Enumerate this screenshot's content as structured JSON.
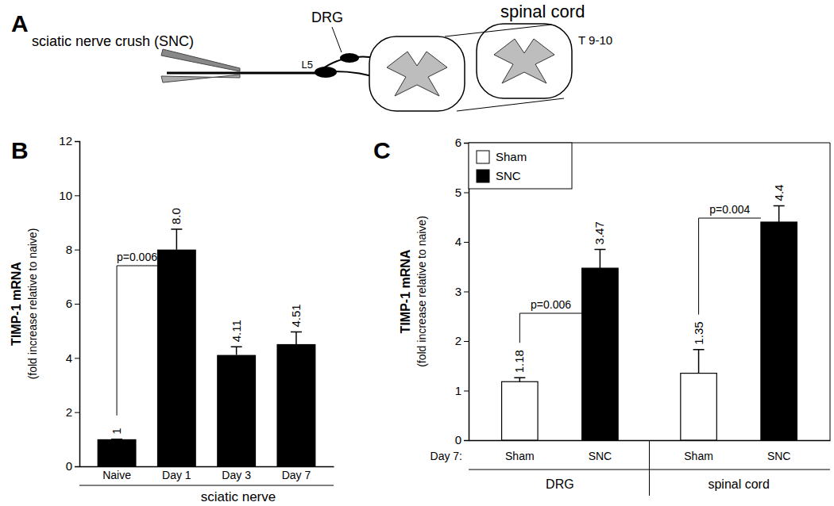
{
  "diagram": {
    "panel": "A",
    "tool": "sciatic nerve crush (SNC)",
    "ganglion": "DRG",
    "root": "L5",
    "cord": "spinal cord",
    "segment": "T 9-10"
  },
  "chart_data": [
    {
      "type": "bar",
      "panel": "B",
      "y_label": "TIMP-1 mRNA",
      "y_sublabel": "(fold increase relative to naive)",
      "x_label": "sciatic nerve",
      "categories": [
        "Naive",
        "Day 1",
        "Day 3",
        "Day 7"
      ],
      "values": [
        1,
        8.0,
        4.11,
        4.51
      ],
      "value_labels": [
        "1",
        "8.0",
        "4.11",
        "4.51"
      ],
      "errors": [
        0,
        0.75,
        0.3,
        0.45
      ],
      "color": "#000000",
      "ylim": [
        0,
        12
      ],
      "yticks": [
        0,
        2,
        4,
        6,
        8,
        10,
        12
      ],
      "data_labels": true,
      "annotations": [
        {
          "text": "p=0.006",
          "from": 0,
          "to": 1
        }
      ]
    },
    {
      "type": "bar",
      "panel": "C",
      "y_label": "TIMP-1 mRNA",
      "y_sublabel": "(fold increase relative to naive)",
      "x_prefix": "Day 7:",
      "categories": [
        "DRG",
        "spinal cord"
      ],
      "series": [
        {
          "name": "Sham",
          "color": "#ffffff",
          "values": [
            1.18,
            1.35
          ],
          "errors": [
            0.08,
            0.48
          ]
        },
        {
          "name": "SNC",
          "color": "#000000",
          "values": [
            3.47,
            4.4
          ],
          "errors": [
            0.38,
            0.33
          ]
        }
      ],
      "ylim": [
        0,
        6
      ],
      "yticks": [
        0,
        1,
        2,
        3,
        4,
        5,
        6
      ],
      "legend": "upper left",
      "data_labels": true,
      "annotations": [
        {
          "text": "p=0.006",
          "category": 0
        },
        {
          "text": "p=0.004",
          "category": 1
        }
      ]
    }
  ]
}
